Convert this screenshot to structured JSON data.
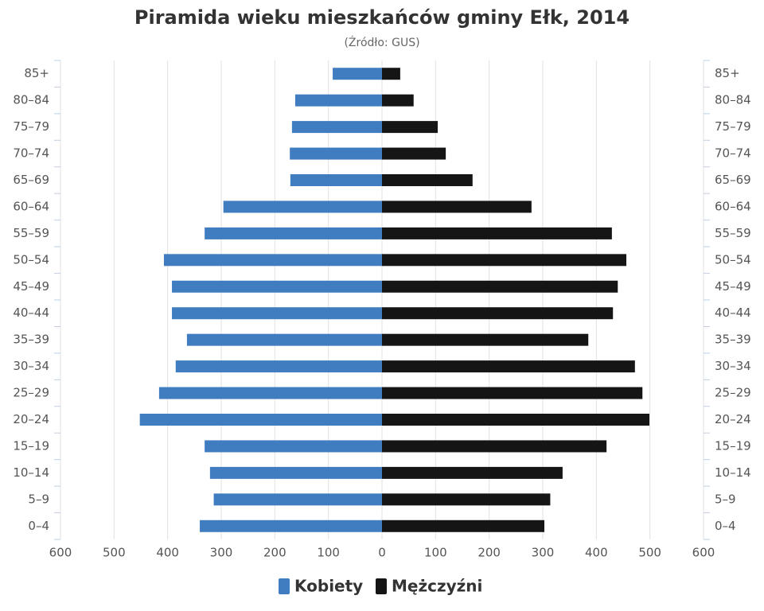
{
  "chart_data": {
    "type": "bar",
    "orientation": "horizontal",
    "title": "Piramida wieku mieszkańców gminy Ełk, 2014",
    "subtitle": "(Źródło: GUS)",
    "categories": [
      "85+",
      "80–84",
      "75–79",
      "70–74",
      "65–69",
      "60–64",
      "55–59",
      "50–54",
      "45–49",
      "40–44",
      "35–39",
      "30–34",
      "25–29",
      "20–24",
      "15–19",
      "10–14",
      "5–9",
      "0–4"
    ],
    "series": [
      {
        "name": "Kobiety",
        "color": "#3f7cc0",
        "values": [
          -92,
          -162,
          -168,
          -172,
          -171,
          -296,
          -331,
          -407,
          -392,
          -392,
          -364,
          -385,
          -416,
          -452,
          -331,
          -321,
          -314,
          -340
        ]
      },
      {
        "name": "Mężczyźni",
        "color": "#151515",
        "values": [
          34,
          59,
          104,
          119,
          169,
          279,
          429,
          456,
          440,
          431,
          385,
          472,
          486,
          499,
          419,
          337,
          314,
          303
        ]
      }
    ],
    "xlim": [
      -600,
      600
    ],
    "xticks": [
      {
        "value": -600,
        "label": "600"
      },
      {
        "value": -500,
        "label": "500"
      },
      {
        "value": -400,
        "label": "400"
      },
      {
        "value": -300,
        "label": "300"
      },
      {
        "value": -200,
        "label": "200"
      },
      {
        "value": -100,
        "label": "100"
      },
      0,
      100,
      200,
      300,
      400,
      500,
      600
    ],
    "grid": true
  }
}
